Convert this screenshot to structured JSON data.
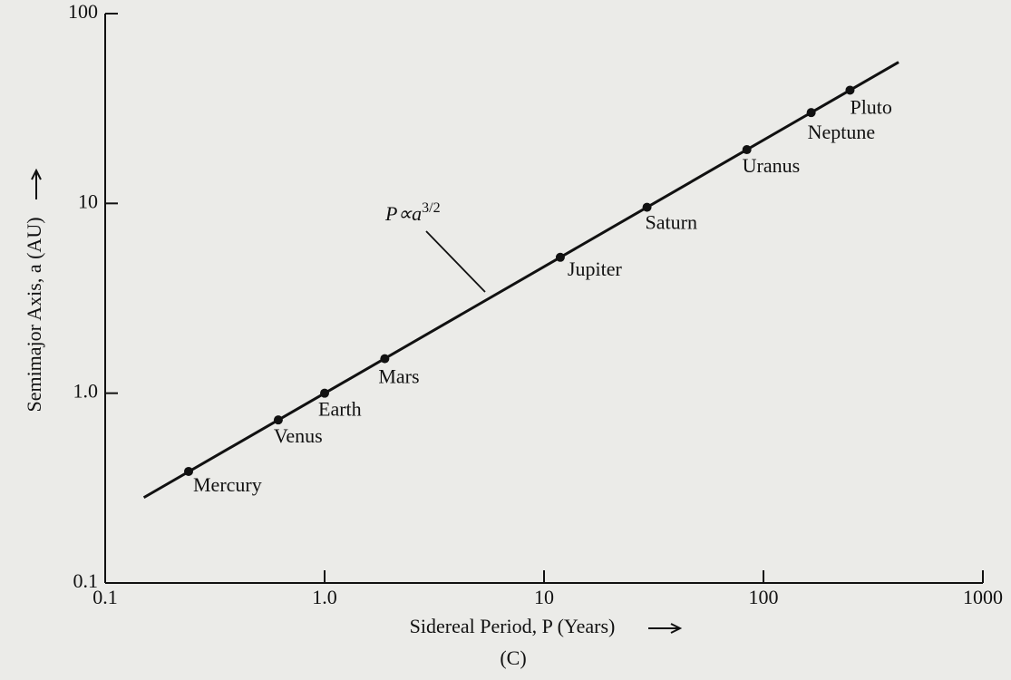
{
  "chart_data": {
    "type": "scatter",
    "xlabel": "Sidereal Period, P (Years)",
    "ylabel": "Semimajor Axis, a (AU)",
    "caption": "(C)",
    "annotation": {
      "text": "P∝a",
      "superscript": "3/2"
    },
    "xscale": "log",
    "yscale": "log",
    "xlim": [
      0.1,
      1000
    ],
    "ylim": [
      0.1,
      100
    ],
    "xticks": [
      0.1,
      {
        "value": 1,
        "label": "1.0"
      },
      10,
      100,
      1000
    ],
    "yticks": [
      0.1,
      {
        "value": 1,
        "label": "1.0"
      },
      10,
      100
    ],
    "color": "#111111",
    "points": {
      "labels": [
        "Mercury",
        "Venus",
        "Earth",
        "Mars",
        "Jupiter",
        "Saturn",
        "Uranus",
        "Neptune",
        "Pluto"
      ],
      "x": [
        0.24,
        0.615,
        1,
        1.88,
        11.86,
        29.46,
        84,
        165,
        248
      ],
      "values": [
        0.387,
        0.723,
        1,
        1.52,
        5.2,
        9.54,
        19.2,
        30.1,
        39.5
      ]
    },
    "fit_line": {
      "x": [
        0.15,
        413
      ],
      "values": [
        0.282,
        55.5
      ]
    }
  }
}
